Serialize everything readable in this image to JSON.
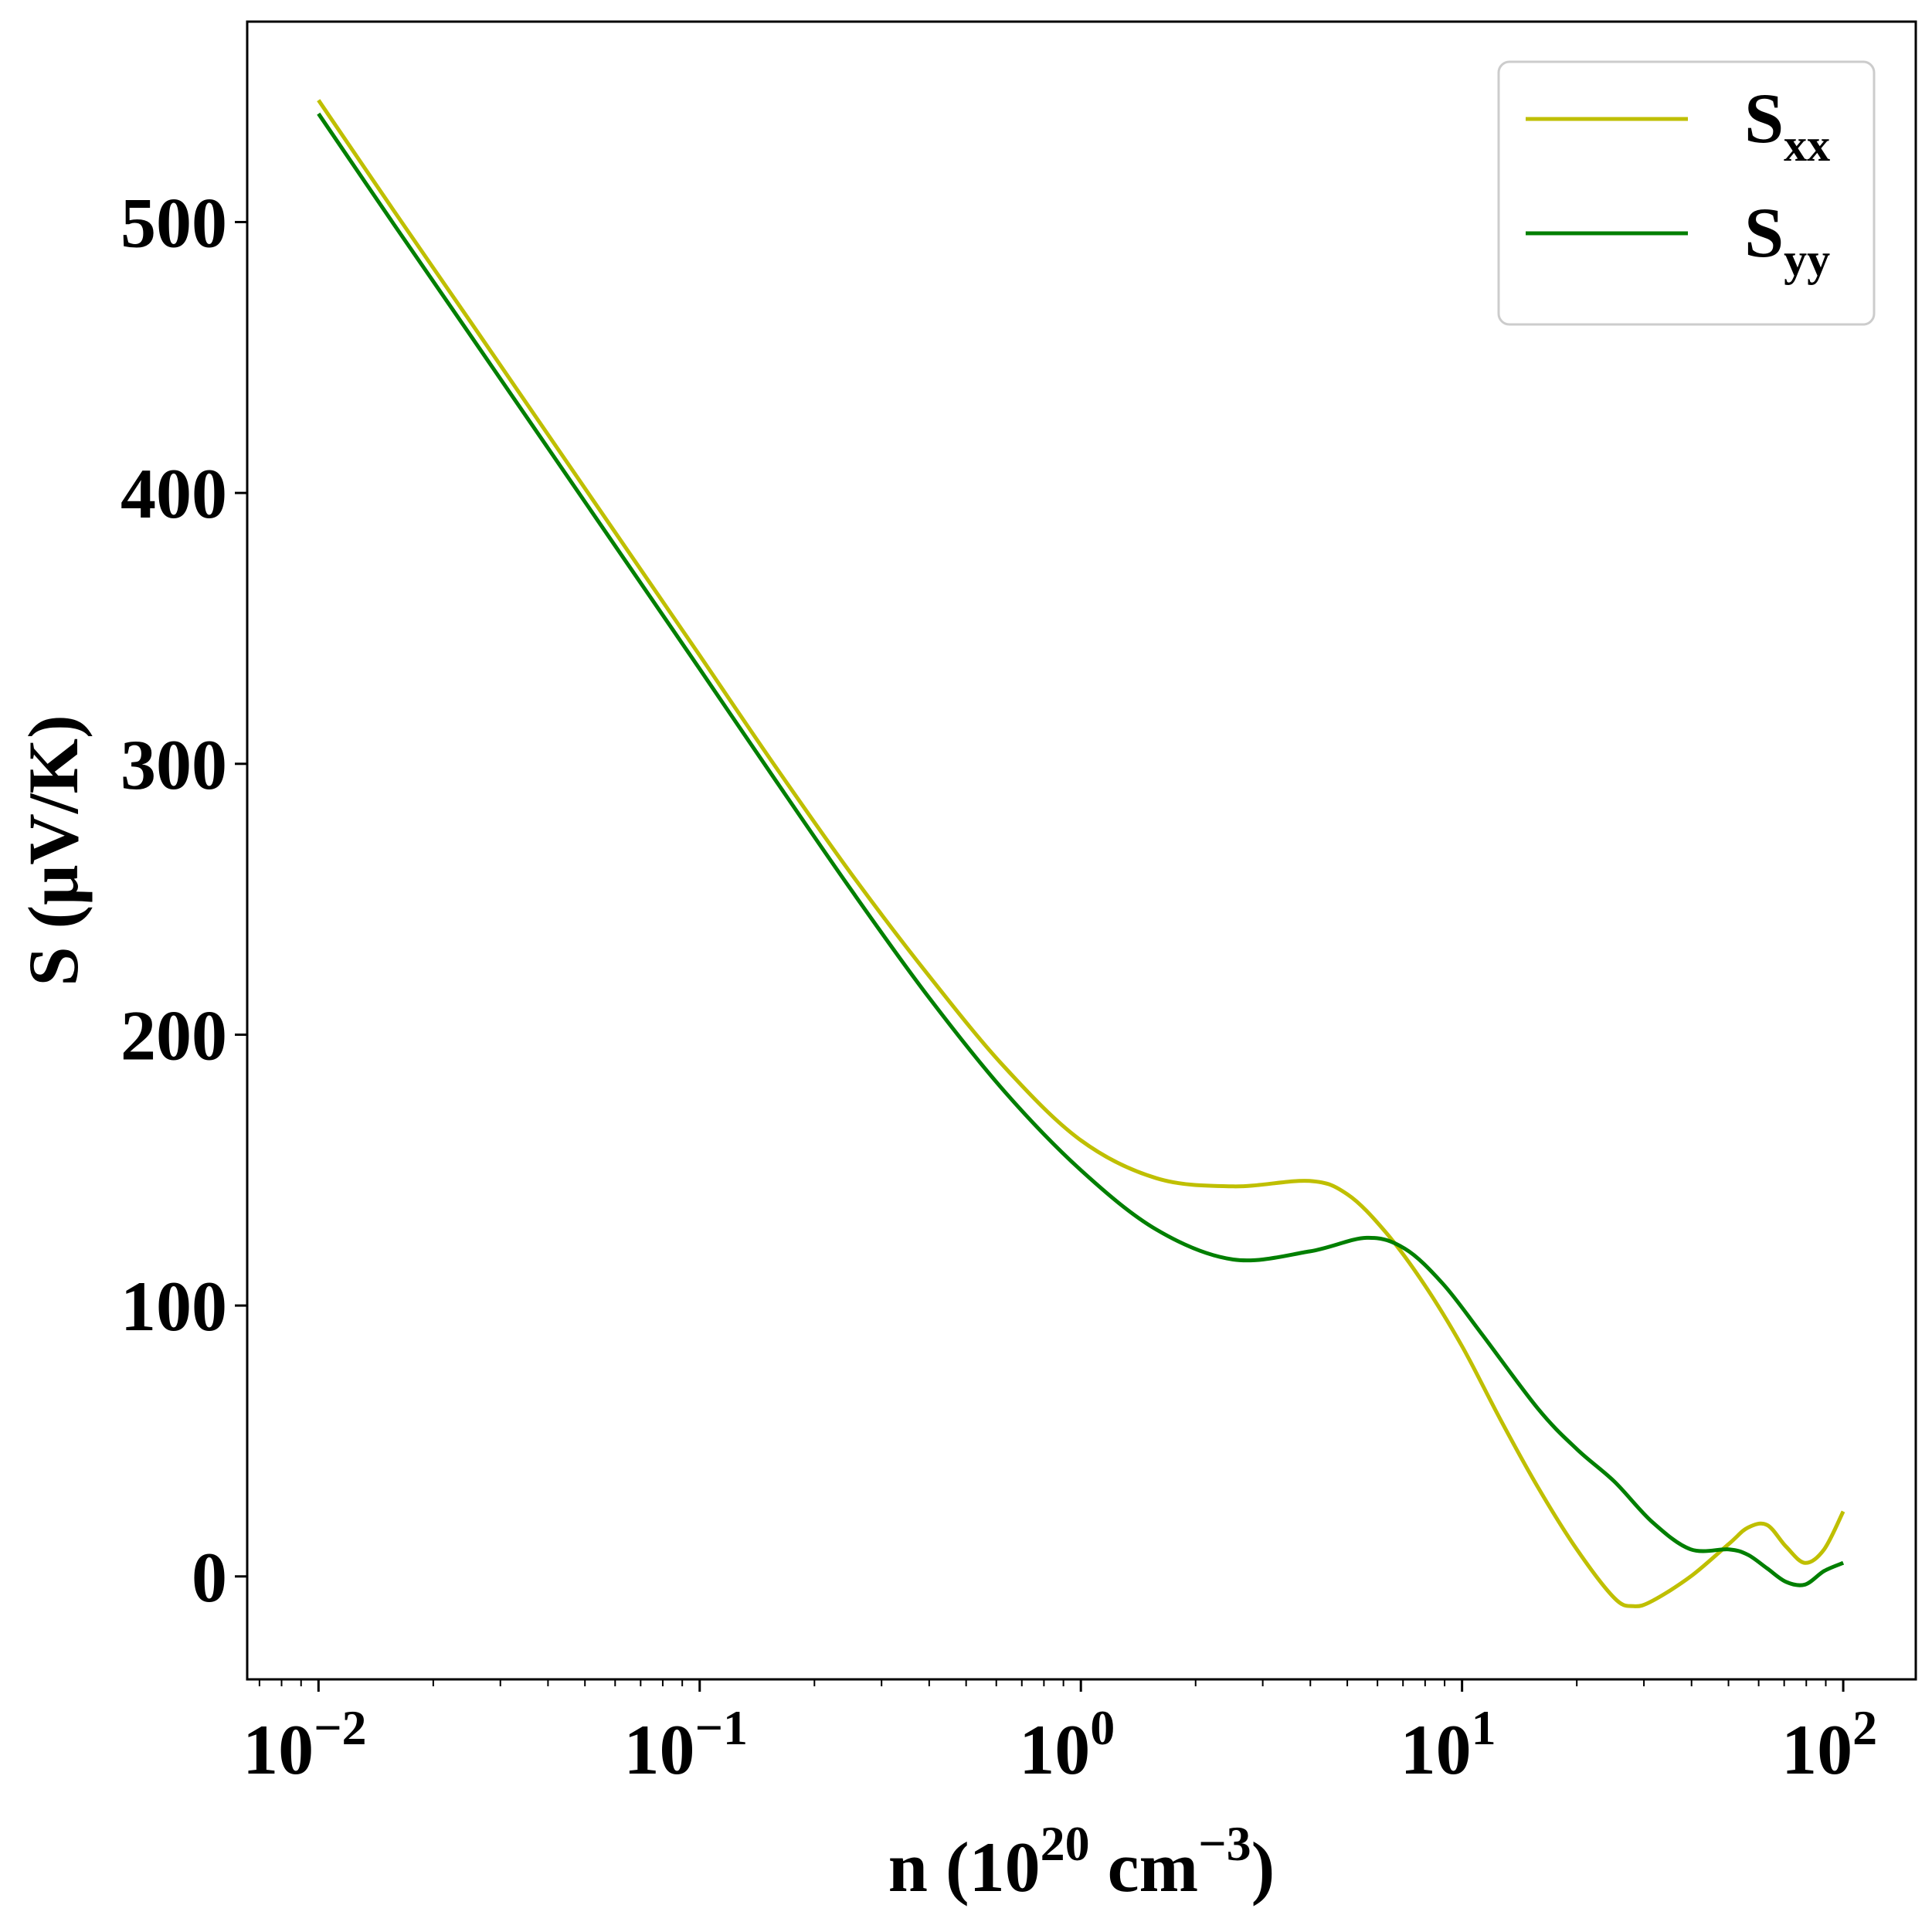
{
  "chart_data": {
    "type": "line",
    "x_scale": "log",
    "xlabel": {
      "base": "n (10",
      "sup1": "20",
      "mid": " cm",
      "sup2": "−3",
      "end": ")"
    },
    "ylabel": "S (μV/K)",
    "xlim": [
      0.0065,
      155
    ],
    "ylim": [
      -38,
      574
    ],
    "x_ticks": [
      {
        "value": 0.01,
        "base": "10",
        "exp": "−2"
      },
      {
        "value": 0.1,
        "base": "10",
        "exp": "−1"
      },
      {
        "value": 1,
        "base": "10",
        "exp": "0"
      },
      {
        "value": 10,
        "base": "10",
        "exp": "1"
      },
      {
        "value": 100,
        "base": "10",
        "exp": "2"
      }
    ],
    "y_ticks": [
      0,
      100,
      200,
      300,
      400,
      500
    ],
    "grid": false,
    "legend": {
      "position": "top-right"
    },
    "series": [
      {
        "name_base": "S",
        "name_sub": "xx",
        "color": "#bfbf00",
        "points": [
          [
            0.01,
            545
          ],
          [
            0.0158,
            504
          ],
          [
            0.0251,
            463
          ],
          [
            0.0398,
            422
          ],
          [
            0.0631,
            381
          ],
          [
            0.1,
            340
          ],
          [
            0.158,
            299
          ],
          [
            0.251,
            259
          ],
          [
            0.398,
            222
          ],
          [
            0.631,
            188
          ],
          [
            1.0,
            161
          ],
          [
            1.58,
            147
          ],
          [
            2.51,
            144
          ],
          [
            3.98,
            146
          ],
          [
            5.01,
            141
          ],
          [
            6.31,
            127
          ],
          [
            7.94,
            108
          ],
          [
            10.0,
            85
          ],
          [
            12.6,
            58
          ],
          [
            15.8,
            33
          ],
          [
            20.0,
            10
          ],
          [
            25.1,
            -8
          ],
          [
            28.2,
            -11
          ],
          [
            31.6,
            -9
          ],
          [
            39.8,
            0
          ],
          [
            50.1,
            12
          ],
          [
            56.2,
            18
          ],
          [
            63.1,
            19
          ],
          [
            70.8,
            11
          ],
          [
            79.4,
            5
          ],
          [
            89.1,
            10
          ],
          [
            100,
            24
          ]
        ]
      },
      {
        "name_base": "S",
        "name_sub": "yy",
        "color": "#007f00",
        "points": [
          [
            0.01,
            540
          ],
          [
            0.0158,
            499
          ],
          [
            0.0251,
            458
          ],
          [
            0.0398,
            417
          ],
          [
            0.0631,
            376
          ],
          [
            0.1,
            335
          ],
          [
            0.158,
            294
          ],
          [
            0.251,
            253
          ],
          [
            0.398,
            214
          ],
          [
            0.631,
            179
          ],
          [
            1.0,
            150
          ],
          [
            1.58,
            128
          ],
          [
            2.51,
            117
          ],
          [
            3.98,
            120
          ],
          [
            5.62,
            125
          ],
          [
            7.08,
            121
          ],
          [
            8.91,
            108
          ],
          [
            11.2,
            90
          ],
          [
            15.8,
            62
          ],
          [
            20.0,
            47
          ],
          [
            25.1,
            35
          ],
          [
            31.6,
            20
          ],
          [
            39.8,
            10
          ],
          [
            50.1,
            10
          ],
          [
            56.2,
            8
          ],
          [
            63.1,
            3
          ],
          [
            70.8,
            -2
          ],
          [
            79.4,
            -3
          ],
          [
            89.1,
            2
          ],
          [
            100,
            5
          ]
        ]
      }
    ]
  }
}
